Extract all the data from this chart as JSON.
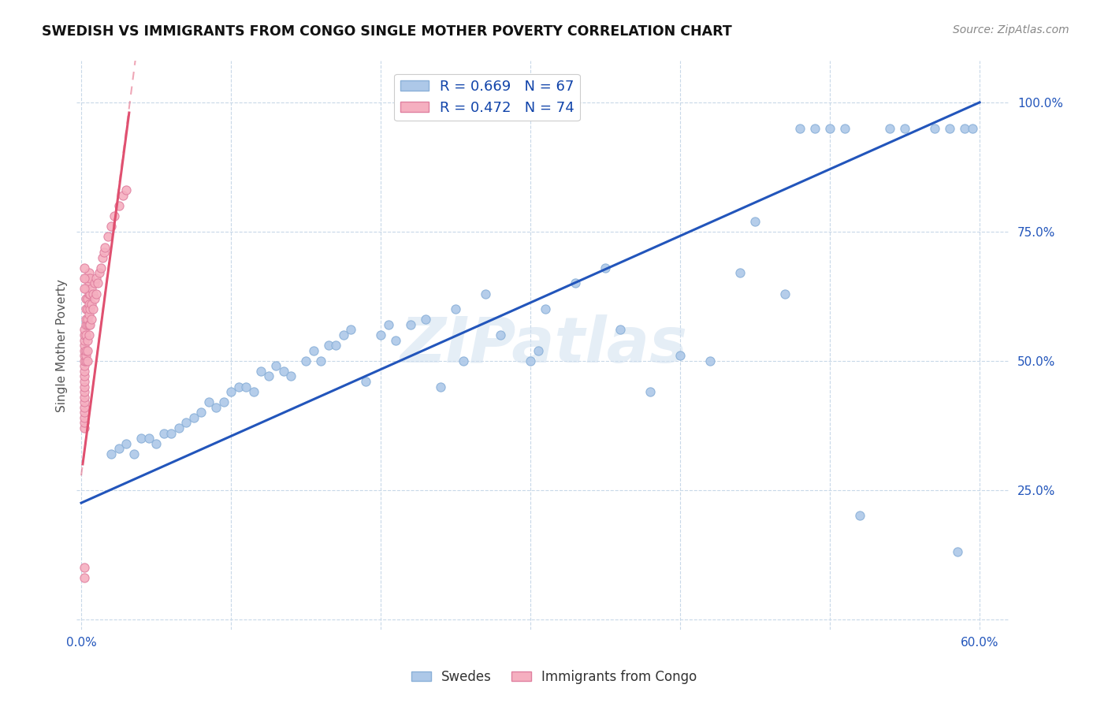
{
  "title": "SWEDISH VS IMMIGRANTS FROM CONGO SINGLE MOTHER POVERTY CORRELATION CHART",
  "source": "Source: ZipAtlas.com",
  "ylabel": "Single Mother Poverty",
  "legend_label1": "R = 0.669   N = 67",
  "legend_label2": "R = 0.472   N = 74",
  "legend_color1": "#adc8e8",
  "legend_color2": "#f5afc0",
  "scatter_color_blue": "#adc8e8",
  "scatter_color_pink": "#f5afc0",
  "scatter_edge_blue": "#8ab0d8",
  "scatter_edge_pink": "#e080a0",
  "line_color_blue": "#2255bb",
  "line_color_pink": "#e05070",
  "watermark": "ZIPatlas",
  "label_swedes": "Swedes",
  "label_congo": "Immigrants from Congo",
  "xlim": [
    -0.003,
    0.62
  ],
  "ylim": [
    -0.02,
    1.08
  ],
  "x_ticks": [
    0.0,
    0.1,
    0.2,
    0.3,
    0.4,
    0.5,
    0.6
  ],
  "x_tick_labels": [
    "0.0%",
    "",
    "",
    "",
    "",
    "",
    "60.0%"
  ],
  "y_ticks": [
    0.0,
    0.25,
    0.5,
    0.75,
    1.0
  ],
  "y_tick_labels": [
    "",
    "25.0%",
    "50.0%",
    "75.0%",
    "100.0%"
  ],
  "blue_x": [
    0.02,
    0.025,
    0.03,
    0.035,
    0.04,
    0.045,
    0.05,
    0.055,
    0.06,
    0.065,
    0.07,
    0.075,
    0.08,
    0.085,
    0.09,
    0.095,
    0.1,
    0.105,
    0.11,
    0.115,
    0.12,
    0.125,
    0.13,
    0.135,
    0.14,
    0.15,
    0.155,
    0.16,
    0.165,
    0.17,
    0.175,
    0.18,
    0.19,
    0.2,
    0.205,
    0.21,
    0.22,
    0.23,
    0.24,
    0.25,
    0.255,
    0.27,
    0.28,
    0.3,
    0.305,
    0.31,
    0.33,
    0.35,
    0.36,
    0.38,
    0.4,
    0.42,
    0.44,
    0.45,
    0.47,
    0.48,
    0.49,
    0.5,
    0.51,
    0.52,
    0.54,
    0.55,
    0.57,
    0.58,
    0.585,
    0.59,
    0.595
  ],
  "blue_y": [
    0.32,
    0.33,
    0.34,
    0.32,
    0.35,
    0.35,
    0.34,
    0.36,
    0.36,
    0.37,
    0.38,
    0.39,
    0.4,
    0.42,
    0.41,
    0.42,
    0.44,
    0.45,
    0.45,
    0.44,
    0.48,
    0.47,
    0.49,
    0.48,
    0.47,
    0.5,
    0.52,
    0.5,
    0.53,
    0.53,
    0.55,
    0.56,
    0.46,
    0.55,
    0.57,
    0.54,
    0.57,
    0.58,
    0.45,
    0.6,
    0.5,
    0.63,
    0.55,
    0.5,
    0.52,
    0.6,
    0.65,
    0.68,
    0.56,
    0.44,
    0.51,
    0.5,
    0.67,
    0.77,
    0.63,
    0.95,
    0.95,
    0.95,
    0.95,
    0.2,
    0.95,
    0.95,
    0.95,
    0.95,
    0.13,
    0.95,
    0.95
  ],
  "pink_x": [
    0.002,
    0.002,
    0.002,
    0.002,
    0.002,
    0.002,
    0.002,
    0.002,
    0.002,
    0.002,
    0.002,
    0.002,
    0.002,
    0.002,
    0.002,
    0.002,
    0.002,
    0.002,
    0.002,
    0.002,
    0.003,
    0.003,
    0.003,
    0.003,
    0.003,
    0.003,
    0.003,
    0.003,
    0.003,
    0.003,
    0.004,
    0.004,
    0.004,
    0.004,
    0.004,
    0.004,
    0.004,
    0.005,
    0.005,
    0.005,
    0.005,
    0.005,
    0.005,
    0.005,
    0.006,
    0.006,
    0.006,
    0.006,
    0.007,
    0.007,
    0.007,
    0.008,
    0.008,
    0.009,
    0.009,
    0.01,
    0.01,
    0.011,
    0.012,
    0.013,
    0.014,
    0.015,
    0.016,
    0.018,
    0.02,
    0.022,
    0.025,
    0.028,
    0.03,
    0.002,
    0.002,
    0.002,
    0.002,
    0.002
  ],
  "pink_y": [
    0.37,
    0.38,
    0.39,
    0.4,
    0.41,
    0.42,
    0.43,
    0.44,
    0.45,
    0.46,
    0.47,
    0.48,
    0.49,
    0.5,
    0.51,
    0.52,
    0.53,
    0.54,
    0.55,
    0.56,
    0.5,
    0.51,
    0.52,
    0.55,
    0.57,
    0.58,
    0.6,
    0.62,
    0.64,
    0.66,
    0.5,
    0.52,
    0.54,
    0.57,
    0.58,
    0.6,
    0.62,
    0.55,
    0.57,
    0.59,
    0.61,
    0.63,
    0.65,
    0.67,
    0.57,
    0.6,
    0.63,
    0.66,
    0.58,
    0.61,
    0.64,
    0.6,
    0.63,
    0.62,
    0.65,
    0.63,
    0.66,
    0.65,
    0.67,
    0.68,
    0.7,
    0.71,
    0.72,
    0.74,
    0.76,
    0.78,
    0.8,
    0.82,
    0.83,
    0.64,
    0.66,
    0.68,
    0.08,
    0.1
  ],
  "blue_line_x0": 0.0,
  "blue_line_x1": 0.6,
  "blue_line_y0": 0.225,
  "blue_line_y1": 1.0,
  "pink_line_x0": 0.001,
  "pink_line_x1": 0.032,
  "pink_line_y0": 0.3,
  "pink_line_y1": 0.98
}
